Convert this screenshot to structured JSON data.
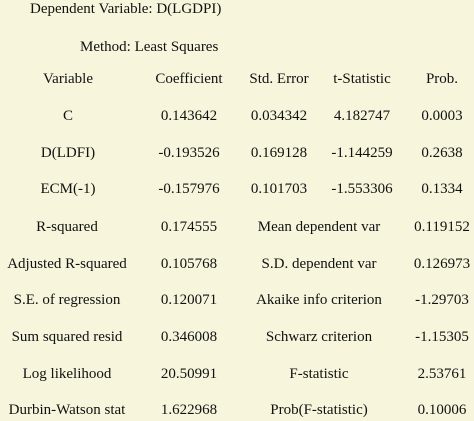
{
  "header": {
    "dependent_variable": "Dependent Variable: D(LGDPI)",
    "method": "Method: Least Squares"
  },
  "columns": [
    "Variable",
    "Coefficient",
    "Std. Error",
    "t-Statistic",
    "Prob."
  ],
  "coefficient_rows": [
    {
      "variable": "C",
      "coefficient": "0.143642",
      "std_error": "0.034342",
      "t_statistic": "4.182747",
      "prob": "0.0003"
    },
    {
      "variable": "D(LDFI)",
      "coefficient": "-0.193526",
      "std_error": "0.169128",
      "t_statistic": "-1.144259",
      "prob": "0.2638"
    },
    {
      "variable": "ECM(-1)",
      "coefficient": "-0.157976",
      "std_error": "0.101703",
      "t_statistic": "-1.553306",
      "prob": "0.1334"
    }
  ],
  "statistics_rows": [
    {
      "label": "R-squared",
      "value": "0.174555",
      "label2": "Mean dependent var",
      "value2": "0.119152"
    },
    {
      "label": "Adjusted R-squared",
      "value": "0.105768",
      "label2": "S.D. dependent var",
      "value2": "0.126973"
    },
    {
      "label": "S.E. of regression",
      "value": "0.120071",
      "label2": "Akaike info criterion",
      "value2": "-1.29703"
    },
    {
      "label": "Sum squared resid",
      "value": "0.346008",
      "label2": "Schwarz criterion",
      "value2": "-1.15305"
    },
    {
      "label": "Log likelihood",
      "value": "20.50991",
      "label2": "F-statistic",
      "value2": "2.53761"
    },
    {
      "label": "Durbin-Watson stat",
      "value": "1.622968",
      "label2": "Prob(F-statistic)",
      "value2": "0.10006"
    }
  ]
}
